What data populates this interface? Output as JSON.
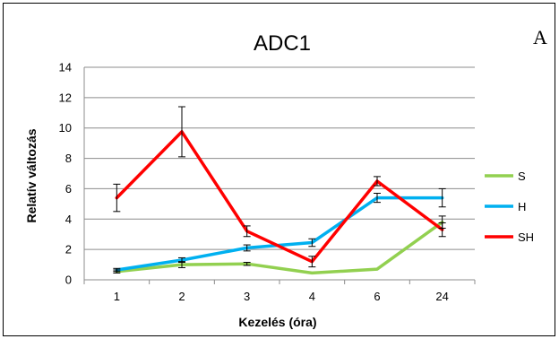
{
  "chart_data": {
    "type": "line",
    "title": "ADC1",
    "panel_label": "A",
    "xlabel": "Kezelés (óra)",
    "ylabel": "Relatív változás",
    "categories": [
      "1",
      "2",
      "3",
      "4",
      "6",
      "24"
    ],
    "ylim": [
      0,
      14
    ],
    "yticks": [
      0,
      2,
      4,
      6,
      8,
      10,
      12,
      14
    ],
    "grid": true,
    "legend_position": "right",
    "series": [
      {
        "name": "S",
        "color": "#92d050",
        "values": [
          0.55,
          1.0,
          1.05,
          0.45,
          0.7,
          3.8
        ],
        "errors": [
          0.1,
          0.2,
          0.1,
          0.0,
          0.0,
          0.4
        ]
      },
      {
        "name": "H",
        "color": "#00b0f0",
        "values": [
          0.65,
          1.3,
          2.1,
          2.45,
          5.4,
          5.4
        ],
        "errors": [
          0.1,
          0.15,
          0.2,
          0.25,
          0.3,
          0.6
        ]
      },
      {
        "name": "SH",
        "color": "#ff0000",
        "values": [
          5.4,
          9.75,
          3.2,
          1.2,
          6.5,
          3.3
        ],
        "errors": [
          0.9,
          1.65,
          0.35,
          0.35,
          0.3,
          0.45
        ]
      }
    ]
  }
}
